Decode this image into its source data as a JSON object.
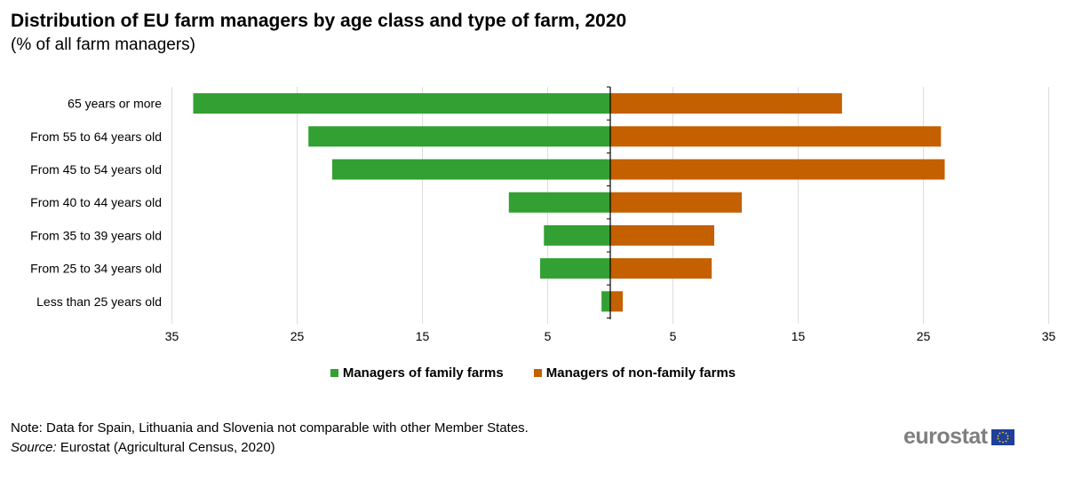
{
  "title": "Distribution  of EU farm managers by age class and type of farm, 2020",
  "subtitle": "(% of all farm managers)",
  "colors": {
    "family": "#33a033",
    "non_family": "#c46000",
    "grid": "#dddddd"
  },
  "chart_data": {
    "type": "bar",
    "orientation": "horizontal",
    "categories": [
      "65 years or more",
      "From 55 to 64 years old",
      "From 45 to 54 years old",
      "From 40 to 44 years old",
      "From 35 to 39 years old",
      "From 25 to 34 years old",
      "Less than 25 years old"
    ],
    "series": [
      {
        "name": "Managers of family farms",
        "values": [
          33.3,
          24.1,
          22.2,
          8.1,
          5.3,
          5.6,
          0.7
        ],
        "color": "#33a033",
        "side": "left"
      },
      {
        "name": "Managers of non-family farms",
        "values": [
          18.5,
          26.4,
          26.7,
          10.5,
          8.3,
          8.1,
          1.0
        ],
        "color": "#c46000",
        "side": "right"
      }
    ],
    "xticks": [
      "35",
      "25",
      "15",
      "5",
      "5",
      "15",
      "25",
      "35"
    ],
    "xlim": [
      -35,
      35
    ],
    "grid": "vertical",
    "legend_position": "bottom"
  },
  "legend": {
    "family": "Managers of family farms",
    "non_family": "Managers of non-family farms"
  },
  "footer": {
    "note": "Note: Data for Spain, Lithuania and Slovenia not comparable with other Member States.",
    "source_label": "Source:",
    "source_text": " Eurostat (Agricultural Census, 2020)"
  },
  "logo_text": "eurostat"
}
